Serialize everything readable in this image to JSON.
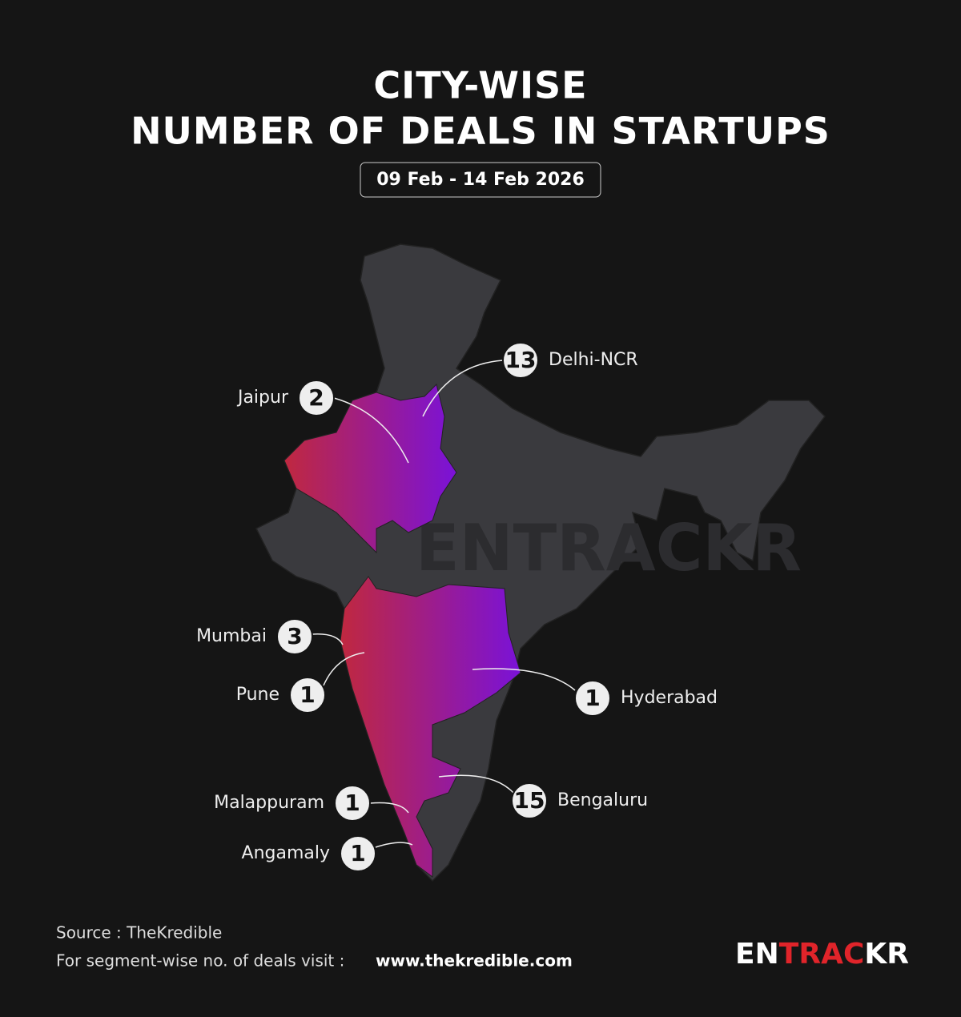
{
  "header": {
    "title_line1": "CITY-WISE",
    "title_line2": "NUMBER OF DEALS IN STARTUPS",
    "date_range": "09 Feb - 14 Feb 2026"
  },
  "cities": [
    {
      "name": "Delhi-NCR",
      "deals": 13
    },
    {
      "name": "Jaipur",
      "deals": 2
    },
    {
      "name": "Mumbai",
      "deals": 3
    },
    {
      "name": "Pune",
      "deals": 1
    },
    {
      "name": "Hyderabad",
      "deals": 1
    },
    {
      "name": "Bengaluru",
      "deals": 15
    },
    {
      "name": "Malappuram",
      "deals": 1
    },
    {
      "name": "Angamaly",
      "deals": 1
    }
  ],
  "watermark": "ENTRACKR",
  "footer": {
    "source": "Source : TheKredible",
    "note": "For segment-wise no. of deals visit :",
    "link": "www.thekredible.com"
  },
  "logo": "ENTRACKR"
}
